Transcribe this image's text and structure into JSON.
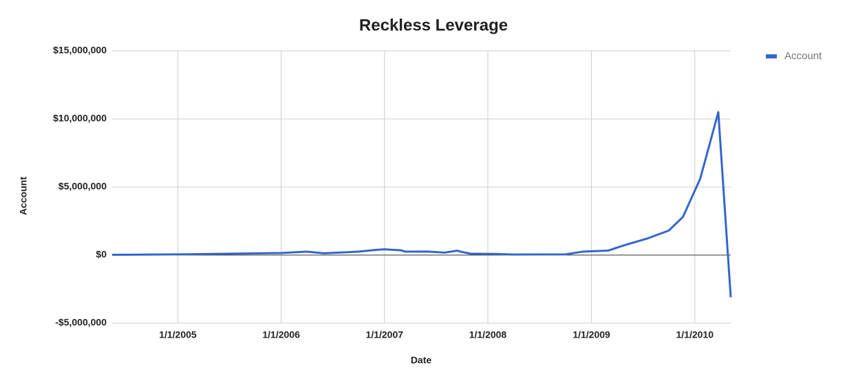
{
  "chart_data": {
    "type": "line",
    "title": "Reckless Leverage",
    "x_label": "Date",
    "y_label": "Account",
    "x": [
      "5/14/2004",
      "1/1/2005",
      "1/1/2006",
      "4/1/2006",
      "6/1/2006",
      "10/1/2006",
      "12/1/2006",
      "1/1/2007",
      "3/1/2007",
      "3/15/2007",
      "6/1/2007",
      "8/1/2007",
      "9/15/2007",
      "10/1/2007",
      "11/1/2007",
      "2/1/2008",
      "4/1/2008",
      "10/1/2008",
      "12/1/2008",
      "3/1/2009",
      "5/1/2009",
      "7/15/2009",
      "10/1/2009",
      "11/20/2009",
      "1/20/2010",
      "3/25/2010",
      "5/8/2010"
    ],
    "series": [
      {
        "name": "Account",
        "color": "#3366cc",
        "values": [
          20000,
          50000,
          150000,
          250000,
          130000,
          250000,
          380000,
          420000,
          350000,
          250000,
          260000,
          180000,
          320000,
          230000,
          100000,
          80000,
          40000,
          50000,
          250000,
          330000,
          750000,
          1200000,
          1800000,
          2800000,
          5600000,
          10500000,
          -3100000
        ]
      }
    ],
    "xlim": [
      "5/14/2004",
      "5/8/2010"
    ],
    "xticks": [
      "1/1/2005",
      "1/1/2006",
      "1/1/2007",
      "1/1/2008",
      "1/1/2009",
      "1/1/2010"
    ],
    "ylim": [
      -5000000,
      15000000
    ],
    "yticks": [
      {
        "value": -5000000,
        "label": "-$5,000,000"
      },
      {
        "value": 0,
        "label": "$0"
      },
      {
        "value": 5000000,
        "label": "$5,000,000"
      },
      {
        "value": 10000000,
        "label": "$10,000,000"
      },
      {
        "value": 15000000,
        "label": "$15,000,000"
      }
    ],
    "grid": true,
    "legend": "top-right"
  }
}
